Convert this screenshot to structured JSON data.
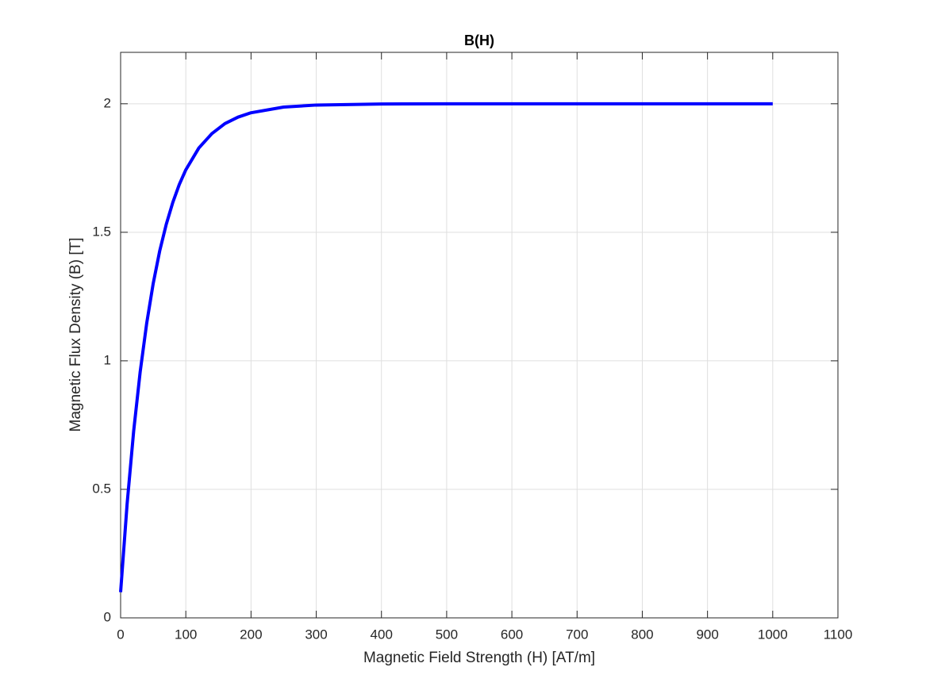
{
  "chart_data": {
    "type": "line",
    "title": "B(H)",
    "xlabel": "Magnetic Field Strength (H) [AT/m]",
    "ylabel": "Magnetic Flux Density (B) [T]",
    "x": [
      0,
      10,
      20,
      30,
      40,
      50,
      60,
      70,
      80,
      90,
      100,
      120,
      140,
      160,
      180,
      200,
      250,
      300,
      400,
      500,
      600,
      700,
      800,
      900,
      1000
    ],
    "series": [
      {
        "name": "B(H)",
        "color": "#0000ff",
        "values": [
          0.1,
          0.444,
          0.726,
          0.957,
          1.146,
          1.301,
          1.428,
          1.531,
          1.616,
          1.686,
          1.743,
          1.828,
          1.884,
          1.923,
          1.948,
          1.965,
          1.987,
          1.995,
          1.999,
          2,
          2,
          2,
          2,
          2,
          2
        ]
      }
    ],
    "xlim": [
      0,
      1100
    ],
    "ylim": [
      0,
      2.2
    ],
    "xticks": [
      0,
      100,
      200,
      300,
      400,
      500,
      600,
      700,
      800,
      900,
      1000,
      1100
    ],
    "yticks": [
      0,
      0.5,
      1,
      1.5,
      2
    ],
    "grid": true
  }
}
